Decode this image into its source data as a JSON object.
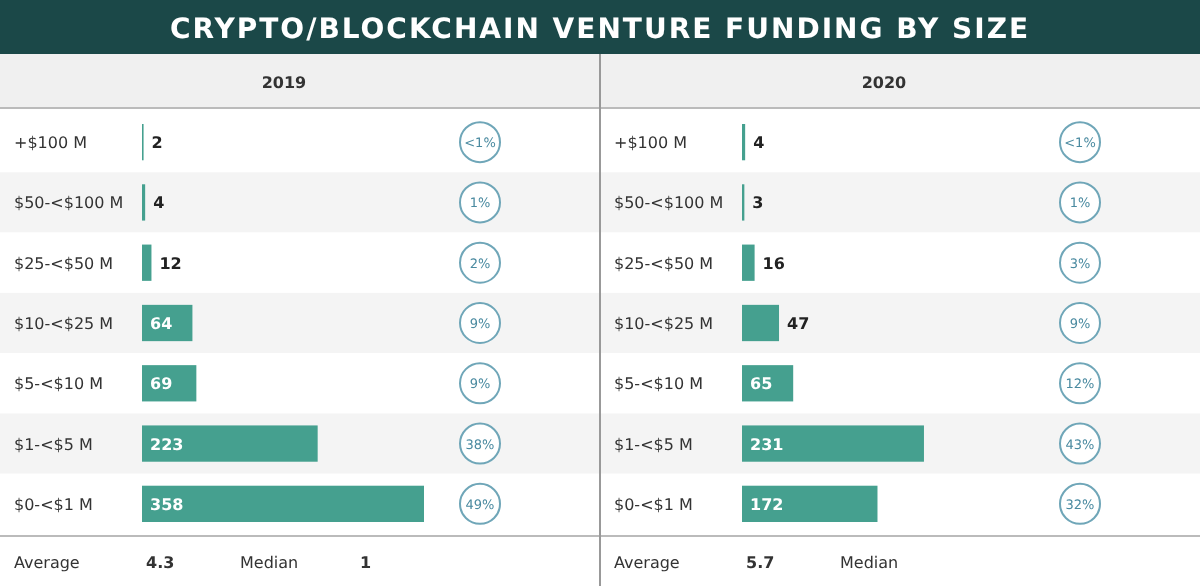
{
  "chart_data": [
    {
      "type": "bar",
      "orientation": "horizontal",
      "title": "CRYPTO/BLOCKCHAIN VENTURE FUNDING BY SIZE",
      "subtitle": "2019",
      "categories": [
        "+$100 M",
        "$50-<$100 M",
        "$25-<$50 M",
        "$10-<$25 M",
        "$5-<$10 M",
        "$1-<$5 M",
        "$0-<$1 M"
      ],
      "values": [
        2,
        4,
        12,
        64,
        69,
        223,
        358
      ],
      "color": "#45a08f",
      "data_labels": true,
      "annotations": [
        "<1%",
        "1%",
        "2%",
        "9%",
        "9%",
        "38%",
        "49%",
        "Average",
        "4.3",
        "Median",
        "1"
      ]
    },
    {
      "type": "bar",
      "orientation": "horizontal",
      "subtitle": "2020",
      "categories": [
        "+$100 M",
        "$50-<$100 M",
        "$25-<$50 M",
        "$10-<$25 M",
        "$5-<$10 M",
        "$1-<$5 M",
        "$0-<$1 M"
      ],
      "values": [
        4,
        3,
        16,
        47,
        65,
        231,
        172
      ],
      "color": "#45a08f",
      "data_labels": true,
      "annotations": [
        "<1%",
        "1%",
        "3%",
        "9%",
        "12%",
        "43%",
        "32%",
        "Average",
        "5.7",
        "Median"
      ]
    }
  ]
}
